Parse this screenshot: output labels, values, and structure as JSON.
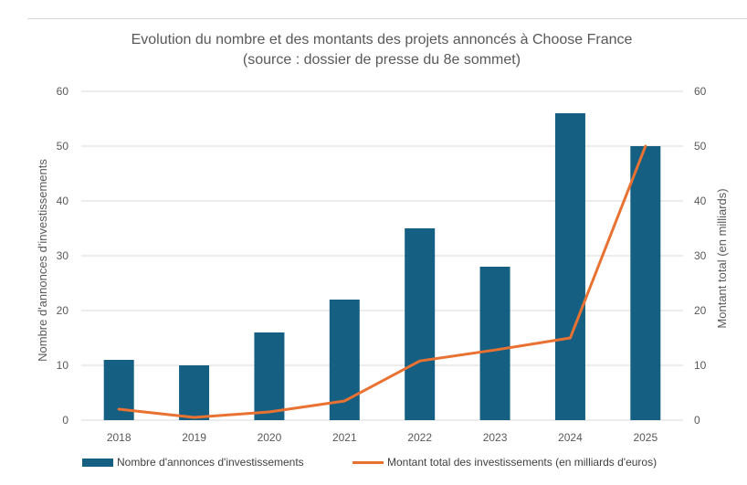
{
  "chart_data": {
    "type": "bar",
    "title": "Evolution du nombre et des montants des projets annoncés à Choose France",
    "subtitle": "(source : dossier de presse du 8e sommet)",
    "categories": [
      "2018",
      "2019",
      "2020",
      "2021",
      "2022",
      "2023",
      "2024",
      "2025"
    ],
    "series": [
      {
        "name": "Nombre d'annonces d'investissements",
        "type": "bar",
        "axis": "left",
        "color": "#156082",
        "values": [
          11,
          10,
          16,
          22,
          35,
          28,
          56,
          50
        ]
      },
      {
        "name": "Montant total des investissements (en milliards d'euros)",
        "type": "line",
        "axis": "right",
        "color": "#E97132",
        "values": [
          2,
          0.5,
          1.5,
          3.5,
          10.8,
          12.8,
          15,
          50
        ]
      }
    ],
    "ylabel": "Nombre d'annonces d'investissements",
    "ylabel_right": "Montant total (en milliards)",
    "ylim": [
      0,
      60
    ],
    "ylim_right": [
      0,
      60
    ],
    "yticks": [
      "0",
      "10",
      "20",
      "30",
      "40",
      "50",
      "60"
    ],
    "yticks_right": [
      "0",
      "10",
      "20",
      "30",
      "40",
      "50",
      "60"
    ],
    "grid": true,
    "legend_position": "bottom"
  }
}
